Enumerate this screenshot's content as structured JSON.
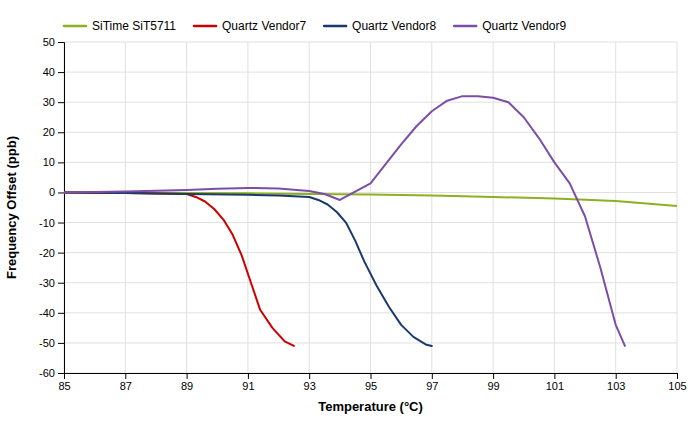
{
  "chart_data": {
    "type": "line",
    "xlabel": "Temperature (°C)",
    "ylabel": "Frequency Offset (ppb)",
    "xlim": [
      85,
      105
    ],
    "ylim": [
      -60,
      50
    ],
    "xticks": [
      85,
      87,
      89,
      91,
      93,
      95,
      97,
      99,
      101,
      103,
      105
    ],
    "yticks": [
      -60,
      -50,
      -40,
      -30,
      -20,
      -10,
      0,
      10,
      20,
      30,
      40,
      50
    ],
    "grid": true,
    "legend": "top",
    "series": [
      {
        "name": "SiTime SiT5711",
        "color": "#8db020",
        "x": [
          85,
          87,
          89,
          91,
          93,
          95,
          97,
          99,
          101,
          103,
          105
        ],
        "values": [
          0,
          -0.1,
          -0.2,
          -0.3,
          -0.5,
          -0.7,
          -1.0,
          -1.5,
          -2.0,
          -2.8,
          -4.5
        ]
      },
      {
        "name": "Quartz Vendor7",
        "color": "#cc0000",
        "x": [
          85,
          87,
          89,
          89.3,
          89.6,
          89.9,
          90.2,
          90.5,
          90.8,
          91.1,
          91.4,
          91.8,
          92.2,
          92.5
        ],
        "values": [
          0,
          -0.2,
          -0.5,
          -1.5,
          -3.0,
          -5.5,
          -9.0,
          -14.0,
          -21.0,
          -30.0,
          -39.0,
          -45.0,
          -49.5,
          -51.0
        ]
      },
      {
        "name": "Quartz Vendor8",
        "color": "#1a3a6e",
        "x": [
          85,
          87,
          89,
          91,
          92,
          93,
          93.3,
          93.6,
          93.9,
          94.2,
          94.5,
          94.8,
          95.2,
          95.6,
          96.0,
          96.4,
          96.8,
          97.0
        ],
        "values": [
          0,
          -0.2,
          -0.5,
          -0.8,
          -1.0,
          -1.5,
          -2.5,
          -4.0,
          -6.5,
          -10.0,
          -16.0,
          -23.0,
          -31.0,
          -38.0,
          -44.0,
          -48.0,
          -50.5,
          -51.0
        ]
      },
      {
        "name": "Quartz Vendor9",
        "color": "#7b4fa6",
        "x": [
          85,
          87,
          89,
          90,
          91,
          92,
          93,
          93.5,
          94.0,
          95.0,
          96.0,
          96.5,
          97.0,
          97.5,
          98.0,
          98.5,
          99.0,
          99.5,
          100.0,
          100.5,
          101.0,
          101.5,
          102.0,
          102.5,
          103.0,
          103.3
        ],
        "values": [
          0,
          0.3,
          0.8,
          1.2,
          1.5,
          1.3,
          0.5,
          -0.5,
          -2.5,
          3.0,
          16.0,
          22.0,
          27.0,
          30.5,
          32.0,
          32.0,
          31.5,
          30.0,
          25.0,
          18.0,
          10.0,
          3.0,
          -8.0,
          -25.0,
          -44.0,
          -51.0
        ]
      }
    ]
  }
}
